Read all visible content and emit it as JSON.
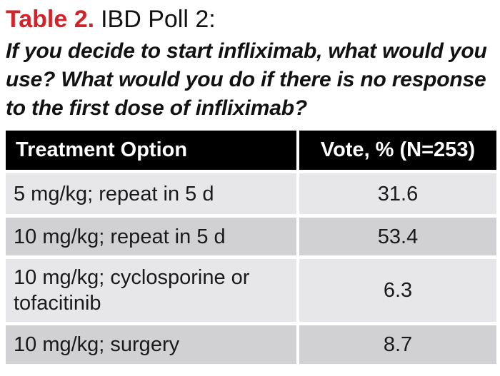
{
  "heading": {
    "label": "Table 2.",
    "title": "IBD Poll 2:",
    "question": "If you decide to start infliximab, what would you use? What would you do if there is no response to the first dose of infliximab?"
  },
  "table": {
    "headers": [
      "Treatment Option",
      "Vote, % (N=253)"
    ],
    "rows": [
      {
        "option": "5 mg/kg; repeat in 5 d",
        "vote": "31.6"
      },
      {
        "option": "10 mg/kg; repeat in 5 d",
        "vote": "53.4"
      },
      {
        "option": "10 mg/kg; cyclosporine or tofacitinib",
        "vote": "6.3"
      },
      {
        "option": "10 mg/kg; surgery",
        "vote": "8.7"
      }
    ]
  },
  "chart_data": {
    "type": "table",
    "title": "Table 2. IBD Poll 2",
    "columns": [
      "Treatment Option",
      "Vote, % (N=253)"
    ],
    "categories": [
      "5 mg/kg; repeat in 5 d",
      "10 mg/kg; repeat in 5 d",
      "10 mg/kg; cyclosporine or tofacitinib",
      "10 mg/kg; surgery"
    ],
    "values": [
      31.6,
      53.4,
      6.3,
      8.7
    ],
    "n": 253
  },
  "colors": {
    "accent_red": "#d2232a",
    "header_bg": "#000000",
    "row_light": "#e7e7e9",
    "row_dark": "#d1d1d4"
  }
}
